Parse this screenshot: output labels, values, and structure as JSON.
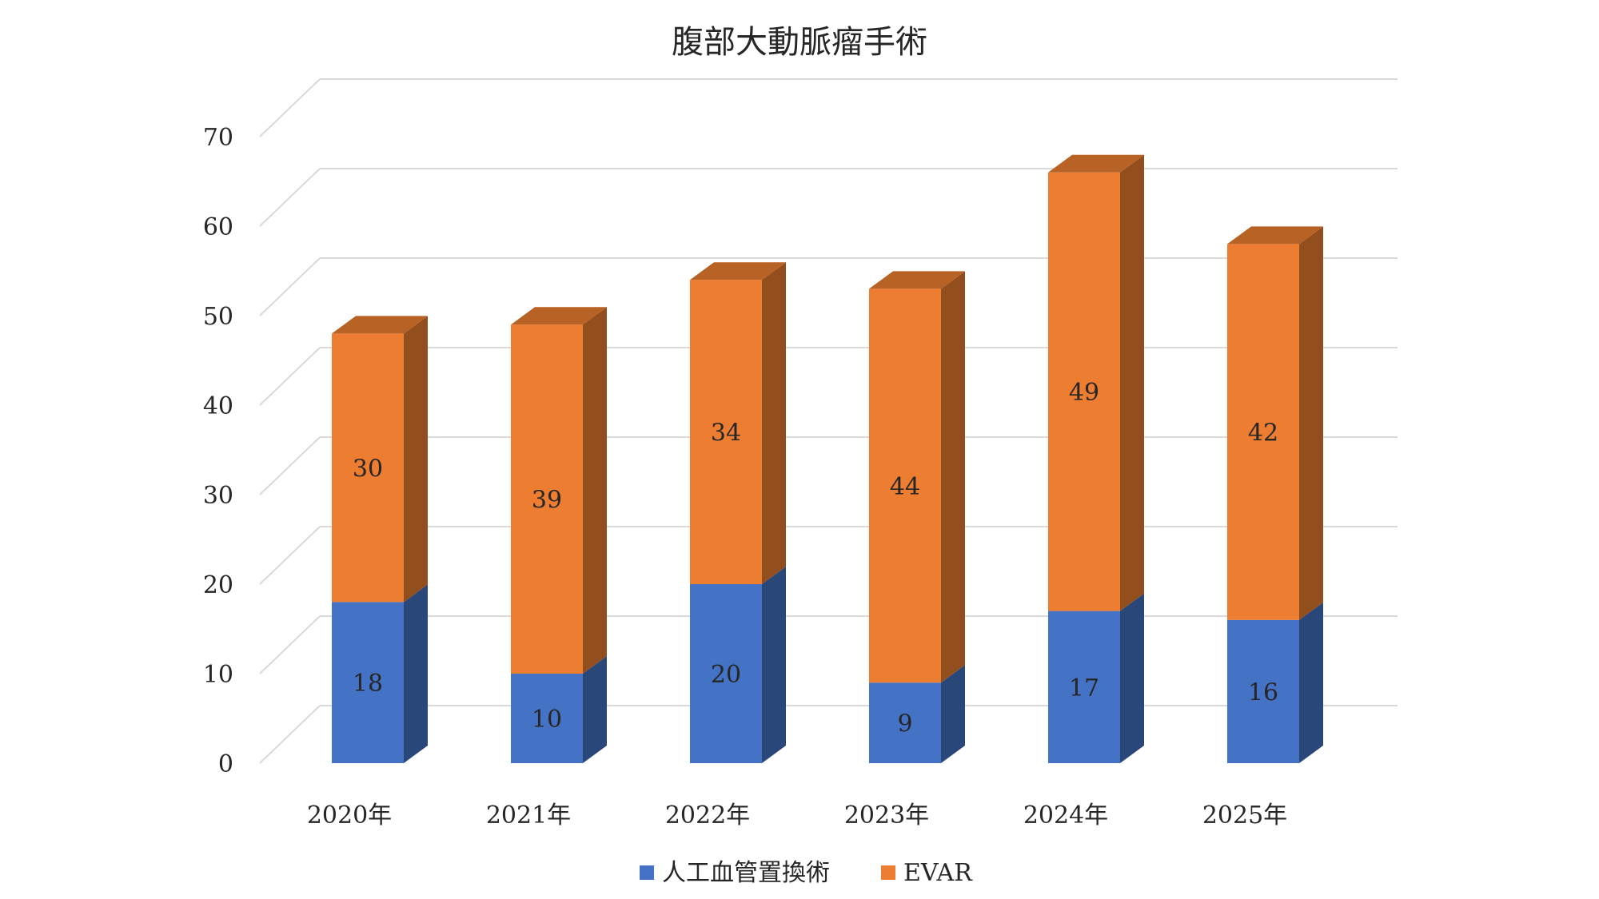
{
  "chart_data": {
    "type": "bar",
    "stacked": true,
    "style": "3d-column",
    "title": "腹部大動脈瘤手術",
    "categories": [
      "2020年",
      "2021年",
      "2022年",
      "2023年",
      "2024年",
      "2025年"
    ],
    "series": [
      {
        "name": "人工血管置換術",
        "values": [
          18,
          10,
          20,
          9,
          17,
          16
        ],
        "color": "#4472C4"
      },
      {
        "name": "EVAR",
        "values": [
          30,
          39,
          34,
          44,
          49,
          42
        ],
        "color": "#ED7D31"
      }
    ],
    "ylim": [
      0,
      70
    ],
    "yticks": [
      0,
      10,
      20,
      30,
      40,
      50,
      60,
      70
    ],
    "grid": true,
    "legend_position": "bottom",
    "data_labels": true
  }
}
